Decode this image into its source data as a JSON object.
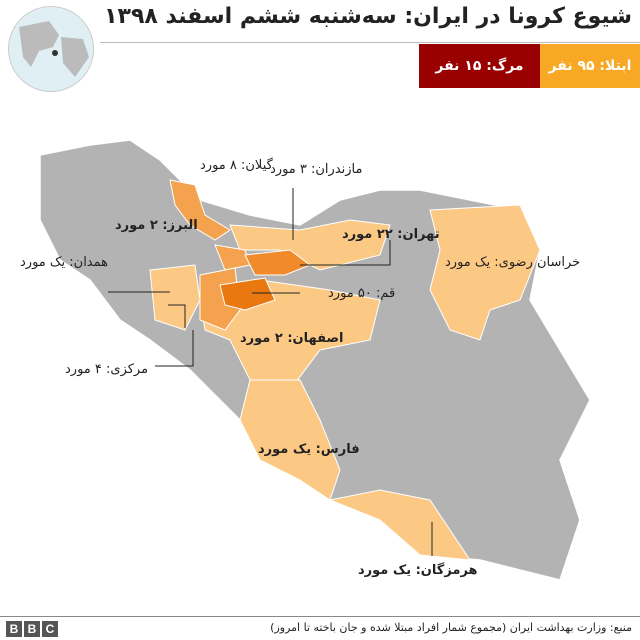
{
  "title": "شیوع کرونا در ایران: سه‌شنبه ششم اسفند ۱۳۹۸",
  "badges": {
    "infected": "ابتلا: ۹۵ نفر",
    "deaths": "مرگ: ۱۵ نفر"
  },
  "colors": {
    "infected": "#f9a825",
    "deaths": "#990000",
    "land": "#b3b3b3",
    "affected_light": "#fcc985",
    "affected_mid": "#f4a24e",
    "affected_high": "#e8780f"
  },
  "labels": {
    "gilan": "گیلان: ۸ مورد",
    "mazandaran": "مازندران: ۳ مورد",
    "alborz": "البرز: ۲ مورد",
    "tehran": "تهران: ۲۲ مورد",
    "hamedan": "همدان: یک مورد",
    "khorasan": "خراسان رضوی: یک مورد",
    "qom": "قم: ۵۰ مورد",
    "isfahan": "اصفهان: ۲ مورد",
    "markazi": "مرکزی: ۴ مورد",
    "fars": "فارس: یک مورد",
    "hormozgan": "هرمزگان: یک مورد"
  },
  "footer": {
    "source": "منبع: وزارت بهداشت ایران (مجموع شمار افراد مبتلا شده و جان باخته تا امروز)",
    "logo": "BBC"
  }
}
